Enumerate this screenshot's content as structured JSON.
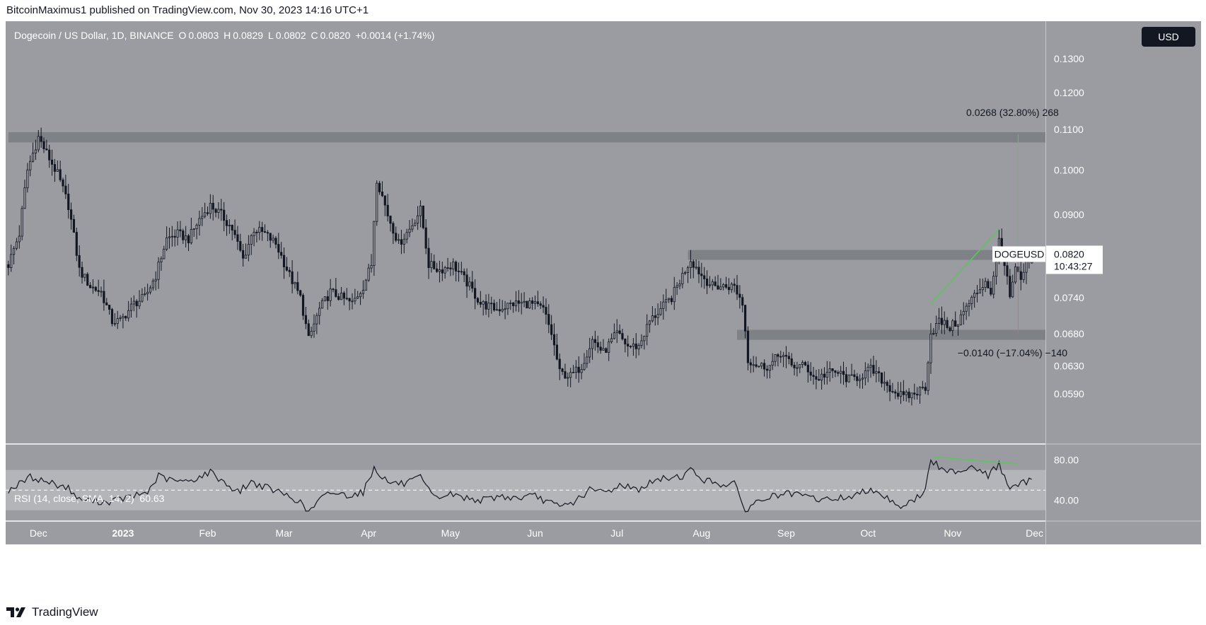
{
  "header": {
    "publisher_line": "BitcoinMaximus1 published on TradingView.com, Nov 30, 2023 14:16 UTC+1"
  },
  "legend": {
    "symbol": "Dogecoin / US Dollar, 1D, BINANCE",
    "o_key": "O",
    "o_val": "0.0803",
    "h_key": "H",
    "h_val": "0.0829",
    "l_key": "L",
    "l_val": "0.0802",
    "c_key": "C",
    "c_val": "0.0820",
    "change": "+0.0014 (+1.74%)"
  },
  "currency_button": "USD",
  "rsi": {
    "legend": "RSI (14, close, SMA, 14, 2)",
    "value": "60.63"
  },
  "price_tag": {
    "symbol": "DOGEUSD",
    "price": "0.0820",
    "countdown": "10:43:27"
  },
  "measure": {
    "up_label": "0.0268 (32.80%) 268",
    "down_label": "−0.0140 (−17.04%) −140"
  },
  "footer": {
    "brand": "TradingView"
  },
  "colors": {
    "pane_bg": "#9a9ca1",
    "zone": "#7e8186",
    "candle": "#131722",
    "green_line": "#5ec45e",
    "rsi_band": "#b3b5b9"
  },
  "chart_data": [
    {
      "type": "candlestick",
      "title": "Dogecoin / US Dollar, 1D, BINANCE",
      "y_axis": {
        "scale": "log",
        "ticks": [
          "0.1300",
          "0.1200",
          "0.1100",
          "0.1000",
          "0.0900",
          "0.0740",
          "0.0680",
          "0.0630",
          "0.0590"
        ],
        "ylim": [
          0.0525,
          0.142
        ]
      },
      "x_axis": {
        "ticks": [
          "Dec",
          "2023",
          "Feb",
          "Mar",
          "Apr",
          "May",
          "Jun",
          "Jul",
          "Aug",
          "Sep",
          "Oct",
          "Nov",
          "Dec"
        ],
        "range": [
          "2022-11-19",
          "2023-12-05"
        ]
      },
      "series_anchors": [
        [
          "2022-11-20",
          0.08
        ],
        [
          "2022-11-24",
          0.086
        ],
        [
          "2022-11-27",
          0.1
        ],
        [
          "2022-12-01",
          0.108
        ],
        [
          "2022-12-04",
          0.104
        ],
        [
          "2022-12-08",
          0.099
        ],
        [
          "2022-12-12",
          0.092
        ],
        [
          "2022-12-16",
          0.079
        ],
        [
          "2022-12-20",
          0.076
        ],
        [
          "2022-12-24",
          0.075
        ],
        [
          "2022-12-28",
          0.07
        ],
        [
          "2022-12-31",
          0.07
        ],
        [
          "2023-01-05",
          0.073
        ],
        [
          "2023-01-09",
          0.074
        ],
        [
          "2023-01-13",
          0.078
        ],
        [
          "2023-01-17",
          0.085
        ],
        [
          "2023-01-21",
          0.086
        ],
        [
          "2023-01-25",
          0.085
        ],
        [
          "2023-01-29",
          0.089
        ],
        [
          "2023-02-02",
          0.092
        ],
        [
          "2023-02-06",
          0.09
        ],
        [
          "2023-02-10",
          0.087
        ],
        [
          "2023-02-14",
          0.081
        ],
        [
          "2023-02-18",
          0.087
        ],
        [
          "2023-02-22",
          0.086
        ],
        [
          "2023-02-26",
          0.084
        ],
        [
          "2023-03-03",
          0.078
        ],
        [
          "2023-03-07",
          0.074
        ],
        [
          "2023-03-10",
          0.067
        ],
        [
          "2023-03-14",
          0.072
        ],
        [
          "2023-03-18",
          0.075
        ],
        [
          "2023-03-22",
          0.074
        ],
        [
          "2023-03-26",
          0.073
        ],
        [
          "2023-03-30",
          0.076
        ],
        [
          "2023-04-02",
          0.08
        ],
        [
          "2023-04-04",
          0.098
        ],
        [
          "2023-04-08",
          0.09
        ],
        [
          "2023-04-12",
          0.084
        ],
        [
          "2023-04-16",
          0.087
        ],
        [
          "2023-04-20",
          0.091
        ],
        [
          "2023-04-23",
          0.08
        ],
        [
          "2023-04-27",
          0.079
        ],
        [
          "2023-05-02",
          0.08
        ],
        [
          "2023-05-08",
          0.076
        ],
        [
          "2023-05-12",
          0.073
        ],
        [
          "2023-05-18",
          0.072
        ],
        [
          "2023-05-24",
          0.073
        ],
        [
          "2023-05-30",
          0.073
        ],
        [
          "2023-06-04",
          0.072
        ],
        [
          "2023-06-07",
          0.068
        ],
        [
          "2023-06-10",
          0.062
        ],
        [
          "2023-06-14",
          0.0615
        ],
        [
          "2023-06-18",
          0.063
        ],
        [
          "2023-06-22",
          0.067
        ],
        [
          "2023-06-26",
          0.065
        ],
        [
          "2023-07-01",
          0.068
        ],
        [
          "2023-07-05",
          0.066
        ],
        [
          "2023-07-09",
          0.066
        ],
        [
          "2023-07-13",
          0.07
        ],
        [
          "2023-07-17",
          0.072
        ],
        [
          "2023-07-21",
          0.074
        ],
        [
          "2023-07-25",
          0.078
        ],
        [
          "2023-07-28",
          0.081
        ],
        [
          "2023-08-01",
          0.078
        ],
        [
          "2023-08-05",
          0.076
        ],
        [
          "2023-08-09",
          0.076
        ],
        [
          "2023-08-13",
          0.076
        ],
        [
          "2023-08-16",
          0.073
        ],
        [
          "2023-08-18",
          0.064
        ],
        [
          "2023-08-22",
          0.063
        ],
        [
          "2023-08-26",
          0.063
        ],
        [
          "2023-08-30",
          0.065
        ],
        [
          "2023-09-03",
          0.063
        ],
        [
          "2023-09-08",
          0.063
        ],
        [
          "2023-09-12",
          0.061
        ],
        [
          "2023-09-16",
          0.062
        ],
        [
          "2023-09-20",
          0.062
        ],
        [
          "2023-09-24",
          0.061
        ],
        [
          "2023-09-28",
          0.0615
        ],
        [
          "2023-10-02",
          0.0625
        ],
        [
          "2023-10-06",
          0.061
        ],
        [
          "2023-10-10",
          0.0595
        ],
        [
          "2023-10-14",
          0.0585
        ],
        [
          "2023-10-18",
          0.059
        ],
        [
          "2023-10-22",
          0.06
        ],
        [
          "2023-10-24",
          0.068
        ],
        [
          "2023-10-27",
          0.07
        ],
        [
          "2023-10-31",
          0.069
        ],
        [
          "2023-11-03",
          0.07
        ],
        [
          "2023-11-07",
          0.073
        ],
        [
          "2023-11-10",
          0.075
        ],
        [
          "2023-11-13",
          0.077
        ],
        [
          "2023-11-15",
          0.075
        ],
        [
          "2023-11-17",
          0.08
        ],
        [
          "2023-11-18",
          0.085
        ],
        [
          "2023-11-20",
          0.08
        ],
        [
          "2023-11-22",
          0.074
        ],
        [
          "2023-11-24",
          0.079
        ],
        [
          "2023-11-26",
          0.077
        ],
        [
          "2023-11-28",
          0.08
        ],
        [
          "2023-11-30",
          0.082
        ]
      ],
      "last_ohlc": {
        "open": 0.0803,
        "high": 0.0829,
        "low": 0.0802,
        "close": 0.082
      },
      "zones": [
        {
          "from": "2022-11-20",
          "to": "2023-12-05",
          "low": 0.1067,
          "high": 0.1093
        },
        {
          "from": "2023-07-27",
          "to": "2023-12-05",
          "low": 0.0809,
          "high": 0.0828
        },
        {
          "from": "2023-08-14",
          "to": "2023-12-05",
          "low": 0.067,
          "high": 0.0686
        }
      ],
      "measurements": [
        {
          "date": "2023-11-25",
          "from": 0.082,
          "to": 0.1088,
          "label": "0.0268 (32.80%) 268"
        },
        {
          "date": "2023-11-25",
          "from": 0.082,
          "to": 0.068,
          "label": "−0.0140 (−17.04%) −140"
        }
      ],
      "trendline": {
        "from": [
          "2023-10-24",
          0.073
        ],
        "to": [
          "2023-11-18",
          0.087
        ]
      },
      "last_price": 0.082
    },
    {
      "type": "line",
      "title": "RSI (14, close, SMA, 14, 2)",
      "y_axis": {
        "ticks": [
          "80.00",
          "40.00"
        ],
        "band": [
          30,
          70
        ],
        "midline": 50,
        "ylim": [
          20,
          95
        ]
      },
      "series_anchors": [
        [
          "2022-11-20",
          50
        ],
        [
          "2022-11-24",
          56
        ],
        [
          "2022-11-28",
          63
        ],
        [
          "2022-12-02",
          60
        ],
        [
          "2022-12-06",
          57
        ],
        [
          "2022-12-12",
          52
        ],
        [
          "2022-12-16",
          40
        ],
        [
          "2022-12-20",
          40
        ],
        [
          "2022-12-26",
          38
        ],
        [
          "2022-12-31",
          41
        ],
        [
          "2023-01-05",
          44
        ],
        [
          "2023-01-10",
          48
        ],
        [
          "2023-01-14",
          64
        ],
        [
          "2023-01-18",
          60
        ],
        [
          "2023-01-24",
          58
        ],
        [
          "2023-01-29",
          63
        ],
        [
          "2023-02-02",
          68
        ],
        [
          "2023-02-06",
          60
        ],
        [
          "2023-02-12",
          48
        ],
        [
          "2023-02-17",
          58
        ],
        [
          "2023-02-23",
          52
        ],
        [
          "2023-03-01",
          46
        ],
        [
          "2023-03-06",
          40
        ],
        [
          "2023-03-10",
          28
        ],
        [
          "2023-03-14",
          40
        ],
        [
          "2023-03-18",
          48
        ],
        [
          "2023-03-24",
          45
        ],
        [
          "2023-03-30",
          48
        ],
        [
          "2023-04-03",
          72
        ],
        [
          "2023-04-08",
          58
        ],
        [
          "2023-04-14",
          56
        ],
        [
          "2023-04-20",
          62
        ],
        [
          "2023-04-25",
          42
        ],
        [
          "2023-05-01",
          46
        ],
        [
          "2023-05-07",
          42
        ],
        [
          "2023-05-13",
          40
        ],
        [
          "2023-05-19",
          44
        ],
        [
          "2023-05-25",
          42
        ],
        [
          "2023-06-01",
          44
        ],
        [
          "2023-06-06",
          38
        ],
        [
          "2023-06-10",
          33
        ],
        [
          "2023-06-15",
          38
        ],
        [
          "2023-06-21",
          50
        ],
        [
          "2023-06-27",
          48
        ],
        [
          "2023-07-03",
          56
        ],
        [
          "2023-07-08",
          50
        ],
        [
          "2023-07-14",
          58
        ],
        [
          "2023-07-19",
          62
        ],
        [
          "2023-07-25",
          64
        ],
        [
          "2023-07-28",
          70
        ],
        [
          "2023-08-02",
          60
        ],
        [
          "2023-08-08",
          56
        ],
        [
          "2023-08-13",
          56
        ],
        [
          "2023-08-17",
          30
        ],
        [
          "2023-08-21",
          38
        ],
        [
          "2023-08-27",
          44
        ],
        [
          "2023-09-02",
          46
        ],
        [
          "2023-09-08",
          44
        ],
        [
          "2023-09-14",
          40
        ],
        [
          "2023-09-20",
          42
        ],
        [
          "2023-09-26",
          44
        ],
        [
          "2023-10-02",
          52
        ],
        [
          "2023-10-07",
          44
        ],
        [
          "2023-10-13",
          34
        ],
        [
          "2023-10-18",
          40
        ],
        [
          "2023-10-22",
          50
        ],
        [
          "2023-10-24",
          80
        ],
        [
          "2023-10-29",
          68
        ],
        [
          "2023-11-04",
          70
        ],
        [
          "2023-11-09",
          74
        ],
        [
          "2023-11-14",
          64
        ],
        [
          "2023-11-18",
          76
        ],
        [
          "2023-11-22",
          50
        ],
        [
          "2023-11-26",
          56
        ],
        [
          "2023-11-30",
          60.63
        ]
      ],
      "divergence_line": {
        "from": [
          "2023-10-25",
          83
        ],
        "to": [
          "2023-11-25",
          76
        ]
      },
      "last_value": 60.63
    }
  ]
}
